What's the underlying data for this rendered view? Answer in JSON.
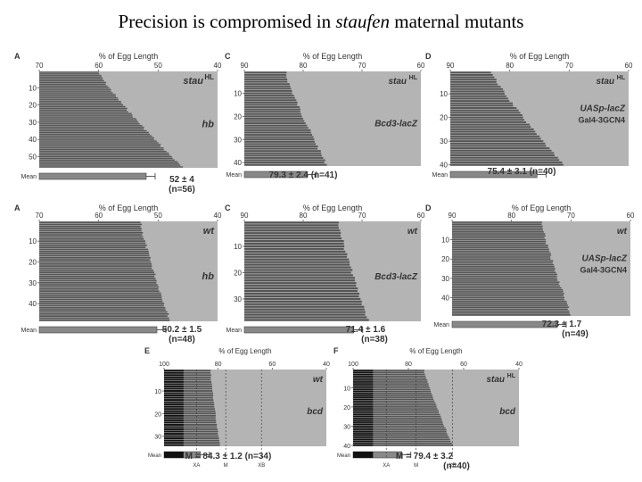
{
  "title": {
    "prefix": "Precision is compromised in ",
    "emph": "staufen",
    "suffix": " maternal mutants"
  },
  "colors": {
    "background": "#b4b4b4",
    "bars": "#555555",
    "mean_bar": "#888888"
  },
  "chart_data": [
    {
      "id": "A_mut",
      "type": "bar",
      "panel_letter": "A",
      "xlabel": "% of Egg Length",
      "x_ticks": [
        "70",
        "60",
        "50",
        "40"
      ],
      "xlim": [
        70,
        40
      ],
      "y_ticks": [
        "10",
        "20",
        "30",
        "40",
        "50"
      ],
      "n_rows": 56,
      "label_genotype": "stau",
      "label_genotype_sup": "HL",
      "label_reporter": "hb",
      "label_reporter2": "",
      "mean_label": "Mean",
      "mean_value": 52,
      "stat_main": "52 ± 4",
      "stat_n": "(n=56)",
      "bar_range": [
        60,
        46
      ],
      "x_markers": []
    },
    {
      "id": "C_mut",
      "type": "bar",
      "panel_letter": "C",
      "xlabel": "% of Egg Length",
      "x_ticks": [
        "90",
        "80",
        "70",
        "60"
      ],
      "xlim": [
        90,
        60
      ],
      "y_ticks": [
        "10",
        "20",
        "30",
        "40"
      ],
      "n_rows": 41,
      "label_genotype": "stau",
      "label_genotype_sup": "HL",
      "label_reporter": "Bcd3-lacZ",
      "label_reporter2": "",
      "mean_label": "Mean",
      "mean_value": 79.3,
      "stat_main": "79.3 ± 2.4 (n=41)",
      "stat_n": "",
      "bar_range": [
        83,
        76
      ],
      "x_markers": []
    },
    {
      "id": "D_mut",
      "type": "bar",
      "panel_letter": "D",
      "xlabel": "% of Egg Length",
      "x_ticks": [
        "90",
        "80",
        "70",
        "60"
      ],
      "xlim": [
        90,
        60
      ],
      "y_ticks": [
        "10",
        "20",
        "30",
        "40"
      ],
      "n_rows": 40,
      "label_genotype": "stau",
      "label_genotype_sup": "HL",
      "label_reporter": "UASp-lacZ",
      "label_reporter2": "Gal4-3GCN4",
      "mean_label": "Mean",
      "mean_value": 75.4,
      "stat_main": "75.4 ± 3.1 (n=40)",
      "stat_n": "",
      "bar_range": [
        83,
        71
      ],
      "x_markers": []
    },
    {
      "id": "A_wt",
      "type": "bar",
      "panel_letter": "A",
      "xlabel": "% of Egg Length",
      "x_ticks": [
        "70",
        "60",
        "50",
        "40"
      ],
      "xlim": [
        70,
        40
      ],
      "y_ticks": [
        "10",
        "20",
        "30",
        "40"
      ],
      "n_rows": 48,
      "label_genotype": "wt",
      "label_genotype_sup": "",
      "label_reporter": "hb",
      "label_reporter2": "",
      "mean_label": "Mean",
      "mean_value": 50.2,
      "stat_main": "50.2 ± 1.5",
      "stat_n": "(n=48)",
      "bar_range": [
        53,
        48
      ],
      "x_markers": []
    },
    {
      "id": "C_wt",
      "type": "bar",
      "panel_letter": "C",
      "xlabel": "% of Egg Length",
      "x_ticks": [
        "90",
        "80",
        "70",
        "60"
      ],
      "xlim": [
        90,
        60
      ],
      "y_ticks": [
        "10",
        "20",
        "30"
      ],
      "n_rows": 38,
      "label_genotype": "wt",
      "label_genotype_sup": "",
      "label_reporter": "Bcd3-lacZ",
      "label_reporter2": "",
      "mean_label": "Mean",
      "mean_value": 71.4,
      "stat_main": "71.4 ± 1.6",
      "stat_n": "(n=38)",
      "bar_range": [
        74,
        69
      ],
      "x_markers": []
    },
    {
      "id": "D_wt",
      "type": "bar",
      "panel_letter": "D",
      "xlabel": "% of Egg Length",
      "x_ticks": [
        "90",
        "80",
        "70",
        "60"
      ],
      "xlim": [
        90,
        60
      ],
      "y_ticks": [
        "10",
        "20",
        "30",
        "40"
      ],
      "n_rows": 49,
      "label_genotype": "wt",
      "label_genotype_sup": "",
      "label_reporter": "UASp-lacZ",
      "label_reporter2": "Gal4-3GCN4",
      "mean_label": "Mean",
      "mean_value": 72.3,
      "stat_main": "72.3 ± 1.7",
      "stat_n": "(n=49)",
      "bar_range": [
        75,
        70
      ],
      "x_markers": []
    },
    {
      "id": "E_wt",
      "type": "bar",
      "panel_letter": "E",
      "xlabel": "% of Egg Length",
      "x_ticks": [
        "100",
        "80",
        "60",
        "40"
      ],
      "xlim": [
        100,
        30
      ],
      "y_ticks": [
        "10",
        "20",
        "30"
      ],
      "n_rows": 34,
      "label_genotype": "wt",
      "label_genotype_sup": "",
      "label_reporter": "bcd",
      "label_reporter2": "",
      "mean_label": "Mean",
      "mean_value": 84.3,
      "stat_main": "M = 84.3 ± 1.2 (n=34)",
      "stat_n": "",
      "bar_range": [
        80,
        76
      ],
      "x_markers": [
        "XA",
        "M",
        "XB"
      ]
    },
    {
      "id": "F_mut",
      "type": "bar",
      "panel_letter": "F",
      "xlabel": "% of Egg Length",
      "x_ticks": [
        "100",
        "80",
        "60",
        "40"
      ],
      "xlim": [
        100,
        30
      ],
      "y_ticks": [
        "10",
        "20",
        "30",
        "40"
      ],
      "n_rows": 40,
      "label_genotype": "stau",
      "label_genotype_sup": "HL",
      "label_reporter": "bcd",
      "label_reporter2": "",
      "mean_label": "Mean",
      "mean_value": 79.4,
      "stat_main": "M = 79.4 ± 3.2",
      "stat_n": "(n=40)",
      "bar_range": [
        70,
        58
      ],
      "x_markers": [
        "XA",
        "M",
        "XB"
      ]
    }
  ]
}
